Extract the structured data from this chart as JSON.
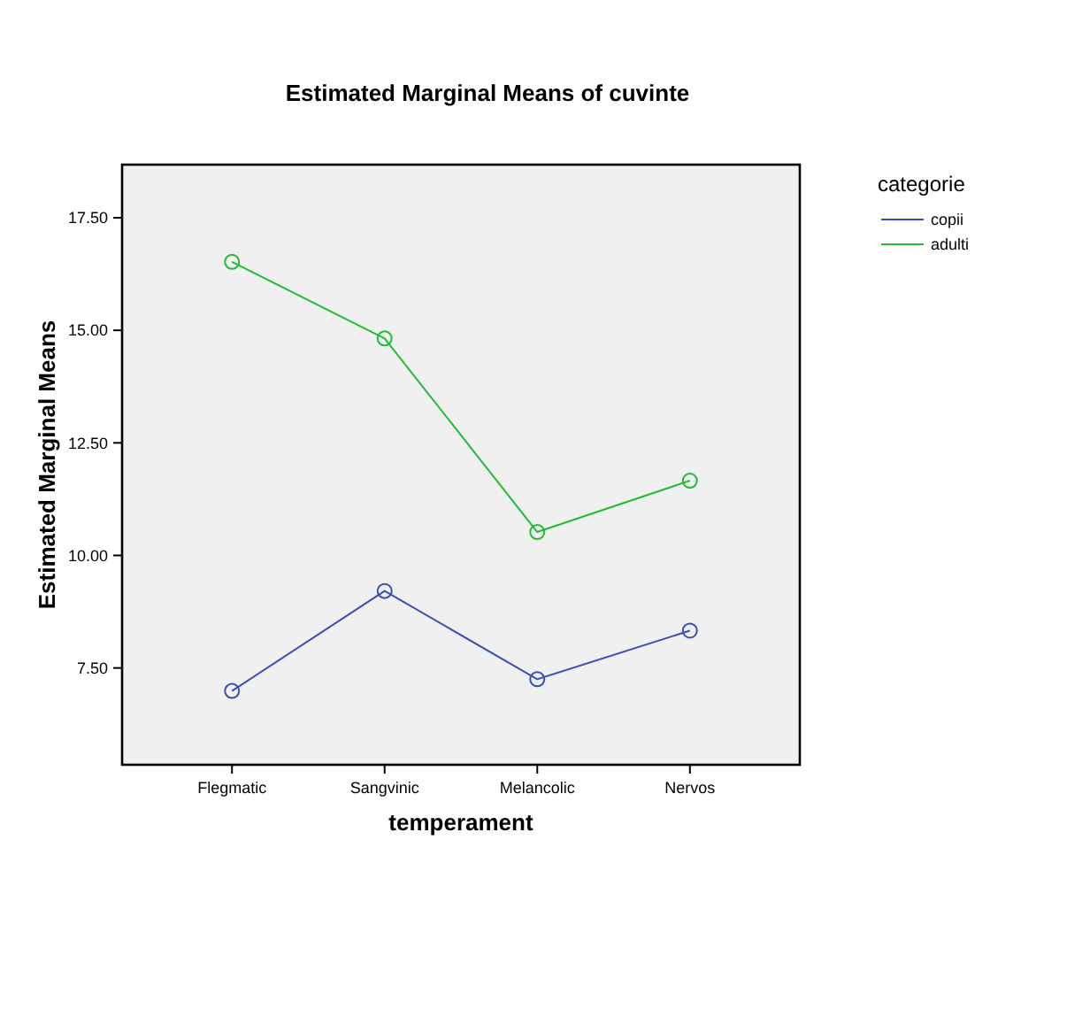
{
  "chart_data": {
    "type": "line",
    "title": "Estimated Marginal Means of cuvinte",
    "xlabel": "temperament",
    "ylabel": "Estimated Marginal Means",
    "legend_title": "categorie",
    "legend": "right",
    "marker": "circle",
    "grid": false,
    "categories": [
      "Flegmatic",
      "Sangvinic",
      "Melancolic",
      "Nervos"
    ],
    "ylim": [
      5.35,
      18.68
    ],
    "yticks": [
      {
        "value": 7.5,
        "label": "7.50"
      },
      {
        "value": 10,
        "label": "10.00"
      },
      {
        "value": 12.5,
        "label": "12.50"
      },
      {
        "value": 15,
        "label": "15.00"
      },
      {
        "value": 17.5,
        "label": "17.50"
      }
    ],
    "series": [
      {
        "name": "copii",
        "color": "#3a50b8",
        "values": [
          6.99,
          9.21,
          7.25,
          8.33
        ]
      },
      {
        "name": "adulti",
        "color": "#22bb33",
        "values": [
          16.52,
          14.82,
          10.52,
          11.66
        ]
      }
    ]
  }
}
